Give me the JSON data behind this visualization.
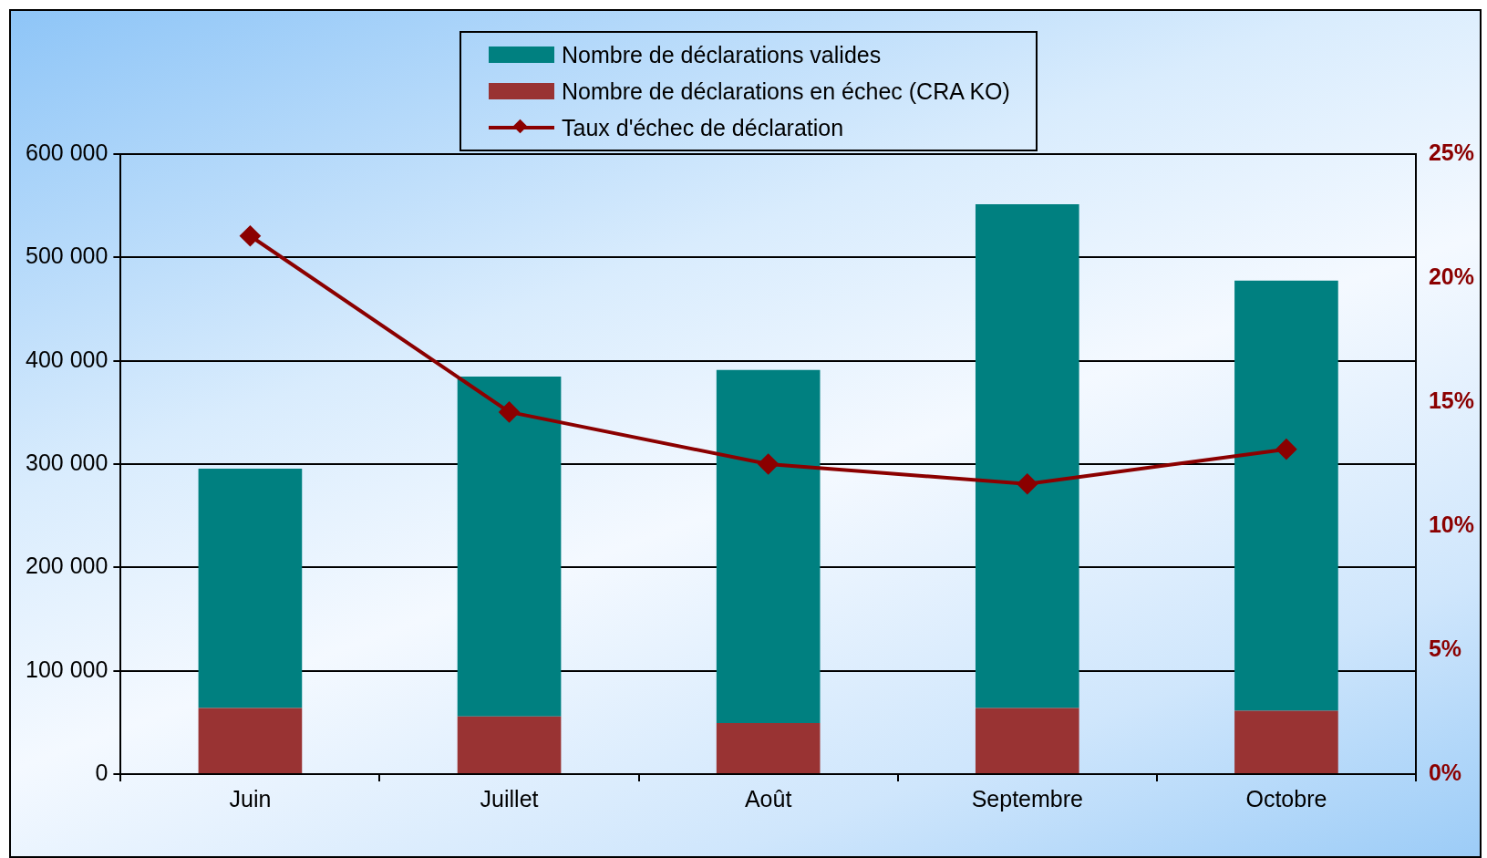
{
  "chart_data": {
    "type": "bar",
    "stacked": true,
    "categories": [
      "Juin",
      "Juillet",
      "Août",
      "Septembre",
      "Octobre"
    ],
    "series": [
      {
        "name": "Nombre de déclarations en échec (CRA KO)",
        "color": "#993333",
        "values": [
          64000,
          55900,
          49500,
          64000,
          61300
        ]
      },
      {
        "name": "Nombre de déclarations valides",
        "color": "#008080",
        "values": [
          231500,
          328800,
          341500,
          487400,
          416200
        ]
      },
      {
        "name": "Taux d'échec de déclaration",
        "type": "line",
        "axis": "y2",
        "color": "#8b0000",
        "values": [
          21.7,
          14.6,
          12.5,
          11.7,
          13.1
        ]
      }
    ],
    "ylim": [
      0,
      600000
    ],
    "yticks": [
      {
        "value": 0,
        "label": "0"
      },
      {
        "value": 100000,
        "label": "100 000"
      },
      {
        "value": 200000,
        "label": "200 000"
      },
      {
        "value": 300000,
        "label": "300 000"
      },
      {
        "value": 400000,
        "label": "400 000"
      },
      {
        "value": 500000,
        "label": "500 000"
      },
      {
        "value": 600000,
        "label": "600 000"
      }
    ],
    "y2lim": [
      0,
      25
    ],
    "y2ticks": [
      {
        "value": 0,
        "label": "0%"
      },
      {
        "value": 5,
        "label": "5%"
      },
      {
        "value": 10,
        "label": "10%"
      },
      {
        "value": 15,
        "label": "15%"
      },
      {
        "value": 20,
        "label": "20%"
      },
      {
        "value": 25,
        "label": "25%"
      }
    ],
    "grid": "y",
    "legend": "top",
    "marker": "diamond",
    "line_style": "solid"
  }
}
